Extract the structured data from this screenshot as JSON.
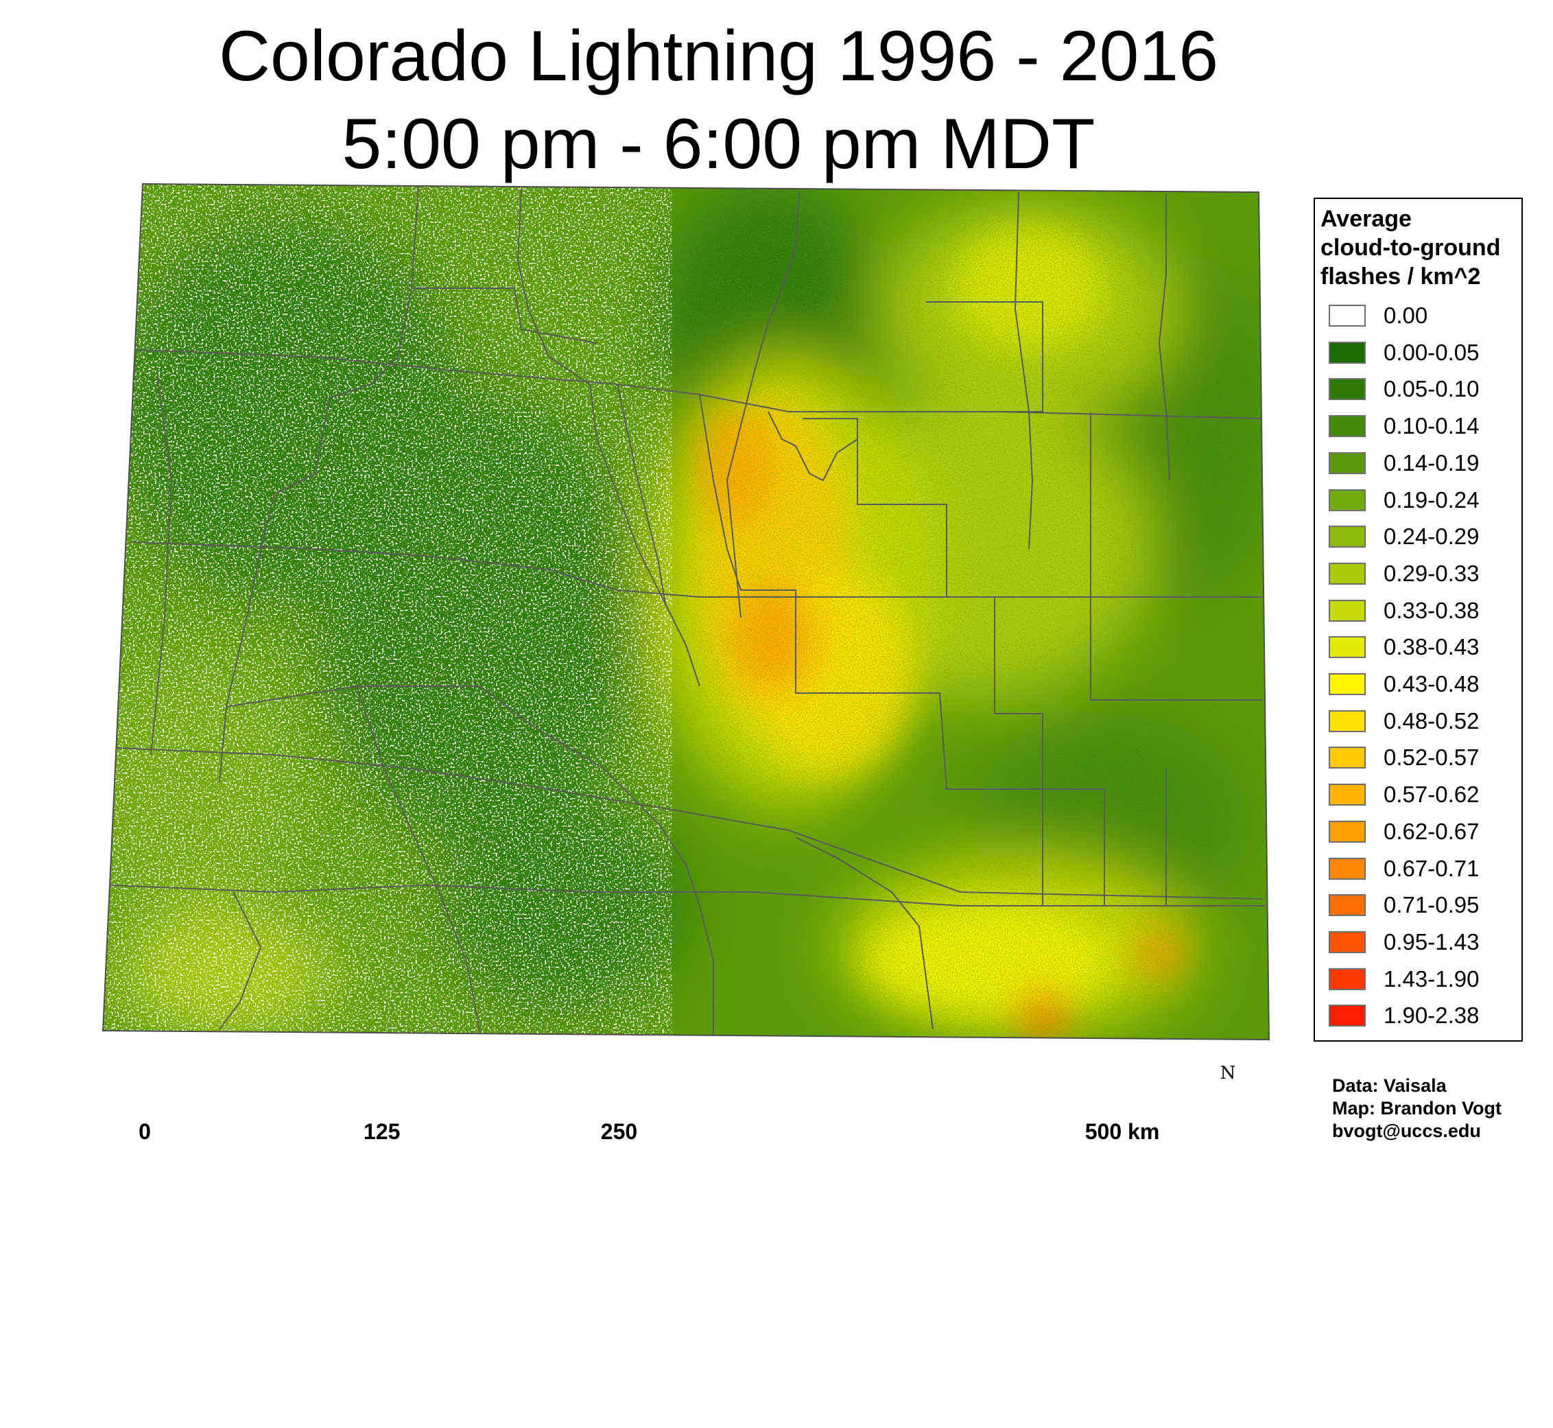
{
  "title": {
    "line1": "Colorado Lightning 1996 - 2016",
    "line2": "5:00 pm - 6:00 pm MDT"
  },
  "legend": {
    "title_lines": [
      "Average",
      "cloud-to-ground",
      "flashes / km^2"
    ],
    "items": [
      {
        "label": "0.00",
        "color": "#ffffff"
      },
      {
        "label": "0.00-0.05",
        "color": "#1a6b00"
      },
      {
        "label": "0.05-0.10",
        "color": "#2f7a07"
      },
      {
        "label": "0.10-0.14",
        "color": "#458a08"
      },
      {
        "label": "0.14-0.19",
        "color": "#5a9a0a"
      },
      {
        "label": "0.19-0.24",
        "color": "#73aa0b"
      },
      {
        "label": "0.24-0.29",
        "color": "#8fbc0a"
      },
      {
        "label": "0.29-0.33",
        "color": "#aacb08"
      },
      {
        "label": "0.33-0.38",
        "color": "#c6da06"
      },
      {
        "label": "0.38-0.43",
        "color": "#e3ea05"
      },
      {
        "label": "0.43-0.48",
        "color": "#fff700"
      },
      {
        "label": "0.48-0.52",
        "color": "#ffe100"
      },
      {
        "label": "0.52-0.57",
        "color": "#ffcb00"
      },
      {
        "label": "0.57-0.62",
        "color": "#ffb500"
      },
      {
        "label": "0.62-0.67",
        "color": "#ff9f00"
      },
      {
        "label": "0.67-0.71",
        "color": "#ff8800"
      },
      {
        "label": "0.71-0.95",
        "color": "#ff7000"
      },
      {
        "label": "0.95-1.43",
        "color": "#ff5500"
      },
      {
        "label": "1.43-1.90",
        "color": "#ff3a00"
      },
      {
        "label": "1.90-2.38",
        "color": "#ff1e00"
      }
    ]
  },
  "scale_bar": {
    "labels": [
      {
        "text": "0",
        "km": 0
      },
      {
        "text": "125",
        "km": 125
      },
      {
        "text": "250",
        "km": 250
      },
      {
        "text": "500 km",
        "km": 500
      }
    ],
    "tick_km": [
      0,
      62.5,
      125,
      187.5,
      250,
      312.5,
      375,
      437.5,
      500
    ]
  },
  "north_arrow": {
    "label": "N"
  },
  "credits": [
    "Data: Vaisala",
    "Map: Brandon Vogt",
    "bvogt@uccs.edu"
  ]
}
